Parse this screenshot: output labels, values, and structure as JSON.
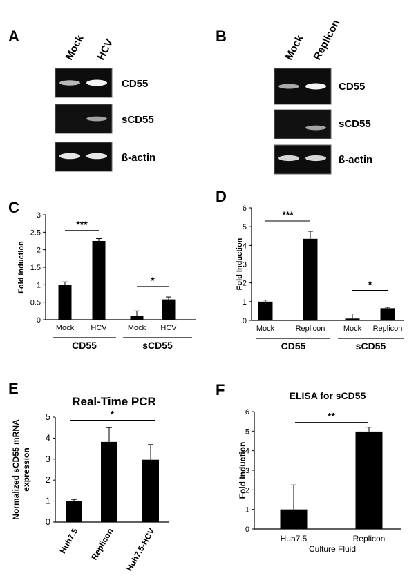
{
  "panels": {
    "A": {
      "letter": "A",
      "lane_labels": [
        "Mock",
        "HCV"
      ],
      "gel_labels": [
        "CD55",
        "sCD55",
        "ß-actin"
      ]
    },
    "B": {
      "letter": "B",
      "lane_labels": [
        "Mock",
        "Replicon"
      ],
      "gel_labels": [
        "CD55",
        "sCD55",
        "ß-actin"
      ]
    },
    "C": {
      "letter": "C"
    },
    "D": {
      "letter": "D"
    },
    "E": {
      "letter": "E"
    },
    "F": {
      "letter": "F"
    }
  },
  "gels": {
    "A": [
      {
        "label": "CD55",
        "bands": [
          0.6,
          1.0
        ]
      },
      {
        "label": "sCD55",
        "bands": [
          0.0,
          0.45
        ]
      },
      {
        "label": "ß-actin",
        "bands": [
          0.9,
          0.9
        ]
      }
    ],
    "B": [
      {
        "label": "CD55",
        "bands": [
          0.5,
          1.0
        ]
      },
      {
        "label": "sCD55",
        "bands": [
          0.0,
          0.45
        ]
      },
      {
        "label": "ß-actin",
        "bands": [
          0.8,
          0.8
        ]
      }
    ]
  },
  "chart_data": [
    {
      "id": "C",
      "type": "bar",
      "title": "",
      "ylabel": "Fold Induction",
      "ylim": [
        0,
        3
      ],
      "yticks": [
        0,
        0.5,
        1,
        1.5,
        2,
        2.5,
        3
      ],
      "categories": [
        "Mock",
        "HCV",
        "Mock",
        "HCV"
      ],
      "groups": [
        "CD55",
        "sCD55"
      ],
      "values": [
        1.0,
        2.25,
        0.1,
        0.58
      ],
      "errors": [
        0.08,
        0.07,
        0.15,
        0.07
      ],
      "significance": [
        {
          "label": "***",
          "from": 0,
          "to": 1,
          "y": 2.55
        },
        {
          "label": "*",
          "from": 2,
          "to": 3,
          "y": 0.95
        }
      ],
      "grid": false
    },
    {
      "id": "D",
      "type": "bar",
      "title": "",
      "ylabel": "Fold Induction",
      "ylim": [
        0,
        6
      ],
      "yticks": [
        0,
        1,
        2,
        3,
        4,
        5,
        6
      ],
      "categories": [
        "Mock",
        "Replicon",
        "Mock",
        "Replicon"
      ],
      "groups": [
        "CD55",
        "sCD55"
      ],
      "values": [
        1.0,
        4.35,
        0.1,
        0.65
      ],
      "errors": [
        0.08,
        0.4,
        0.25,
        0.05
      ],
      "significance": [
        {
          "label": "***",
          "from": 0,
          "to": 1,
          "y": 5.3
        },
        {
          "label": "*",
          "from": 2,
          "to": 3,
          "y": 1.6
        }
      ],
      "grid": false
    },
    {
      "id": "E",
      "type": "bar",
      "title": "Real-Time PCR",
      "ylabel": "Normalized sCD55 mRNA expression",
      "ylim": [
        0,
        5
      ],
      "yticks": [
        0,
        1,
        2,
        3,
        4,
        5
      ],
      "categories": [
        "Huh7.5",
        "Replicon",
        "Huh7.5-HCV"
      ],
      "values": [
        1.0,
        3.82,
        2.97
      ],
      "errors": [
        0.08,
        0.68,
        0.72
      ],
      "significance": [
        {
          "label": "*",
          "from": 0,
          "to": 2,
          "y": 4.85
        }
      ],
      "grid": false
    },
    {
      "id": "F",
      "type": "bar",
      "title": "ELISA for sCD55",
      "ylabel": "Fold Induction",
      "xlabel": "Culture Fluid",
      "ylim": [
        0,
        6
      ],
      "yticks": [
        0,
        1,
        2,
        3,
        4,
        5,
        6
      ],
      "categories": [
        "Huh7.5",
        "Replicon"
      ],
      "values": [
        1.0,
        4.98
      ],
      "errors": [
        1.25,
        0.22
      ],
      "significance": [
        {
          "label": "**",
          "from": 0,
          "to": 1,
          "y": 5.45
        }
      ],
      "grid": false
    }
  ]
}
